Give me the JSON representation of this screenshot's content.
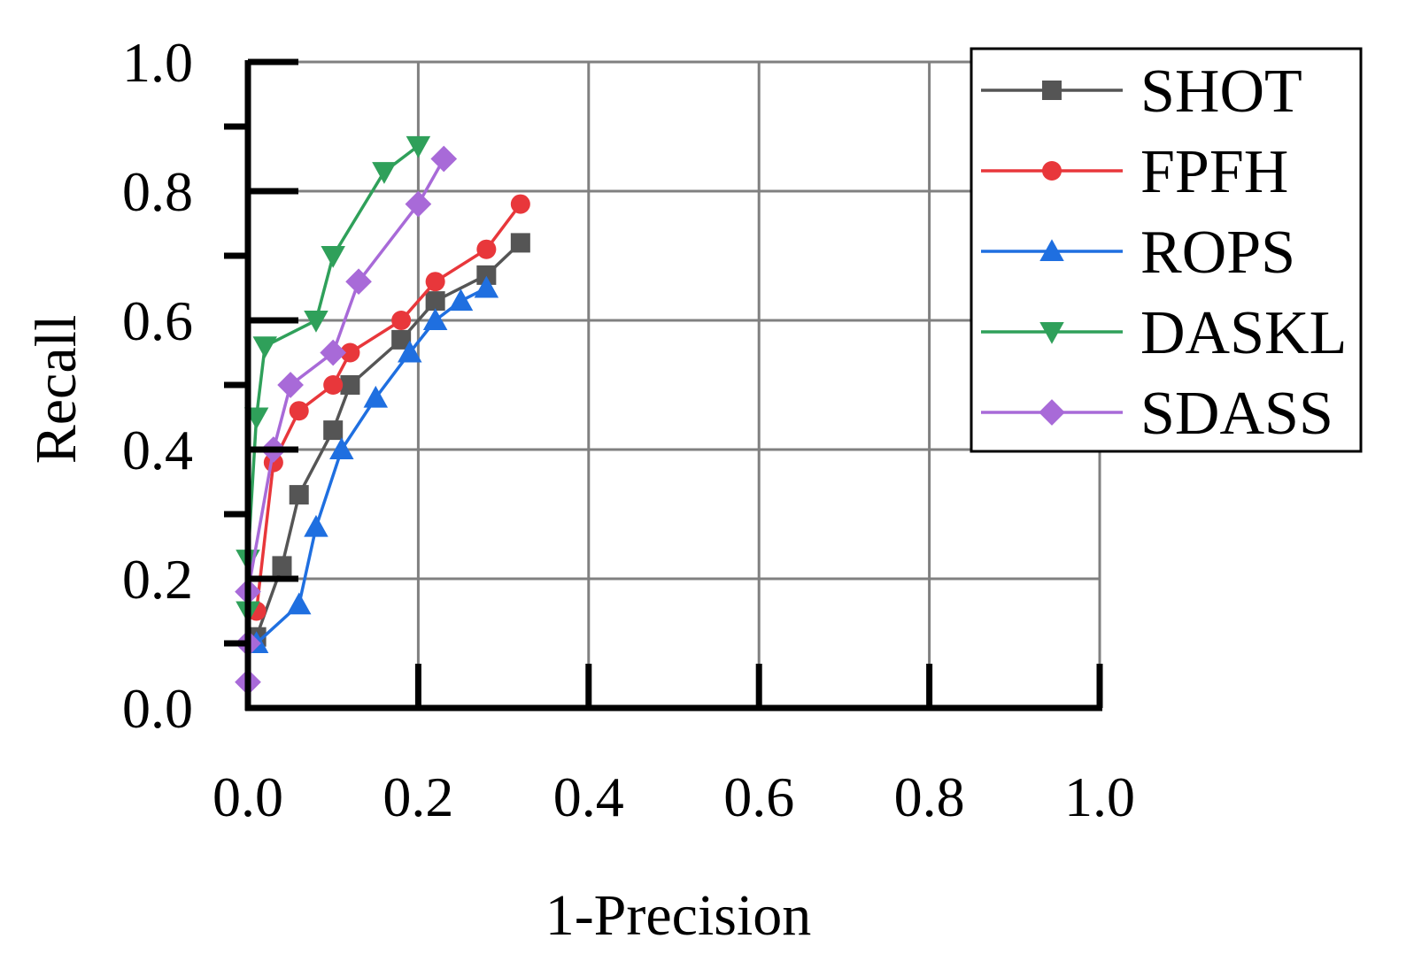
{
  "chart_data": {
    "type": "line",
    "title": "",
    "xlabel": "1-Precision",
    "ylabel": "Recall",
    "xlim": [
      0,
      1
    ],
    "ylim": [
      0,
      1
    ],
    "grid": true,
    "legend_position": "top-right",
    "x_ticks": [
      "0.0",
      "0.2",
      "0.4",
      "0.6",
      "0.8",
      "1.0"
    ],
    "y_ticks": [
      "0.0",
      "0.2",
      "0.4",
      "0.6",
      "0.8",
      "1.0"
    ],
    "series": [
      {
        "name": "SHOT",
        "color": "#555555",
        "marker": "square",
        "x": [
          0.01,
          0.04,
          0.06,
          0.1,
          0.12,
          0.18,
          0.22,
          0.28,
          0.32
        ],
        "y": [
          0.11,
          0.22,
          0.33,
          0.43,
          0.5,
          0.57,
          0.63,
          0.67,
          0.72
        ]
      },
      {
        "name": "FPFH",
        "color": "#e8373b",
        "marker": "circle",
        "x": [
          0.01,
          0.03,
          0.06,
          0.1,
          0.12,
          0.18,
          0.22,
          0.28,
          0.32
        ],
        "y": [
          0.15,
          0.38,
          0.46,
          0.5,
          0.55,
          0.6,
          0.66,
          0.71,
          0.78
        ]
      },
      {
        "name": "ROPS",
        "color": "#1f6fe0",
        "marker": "triangle-up",
        "x": [
          0.01,
          0.06,
          0.08,
          0.11,
          0.15,
          0.19,
          0.22,
          0.25,
          0.28
        ],
        "y": [
          0.1,
          0.16,
          0.28,
          0.4,
          0.48,
          0.55,
          0.6,
          0.63,
          0.65
        ]
      },
      {
        "name": "DASKL",
        "color": "#2fa05a",
        "marker": "triangle-down",
        "x": [
          0.0,
          0.0,
          0.01,
          0.02,
          0.08,
          0.1,
          0.16,
          0.2
        ],
        "y": [
          0.15,
          0.23,
          0.45,
          0.56,
          0.6,
          0.7,
          0.83,
          0.87
        ]
      },
      {
        "name": "SDASS",
        "color": "#a86ad8",
        "marker": "diamond",
        "x": [
          0.0,
          0.0,
          0.0,
          0.03,
          0.05,
          0.1,
          0.13,
          0.2,
          0.23
        ],
        "y": [
          0.04,
          0.1,
          0.18,
          0.4,
          0.5,
          0.55,
          0.66,
          0.78,
          0.85
        ]
      }
    ]
  }
}
